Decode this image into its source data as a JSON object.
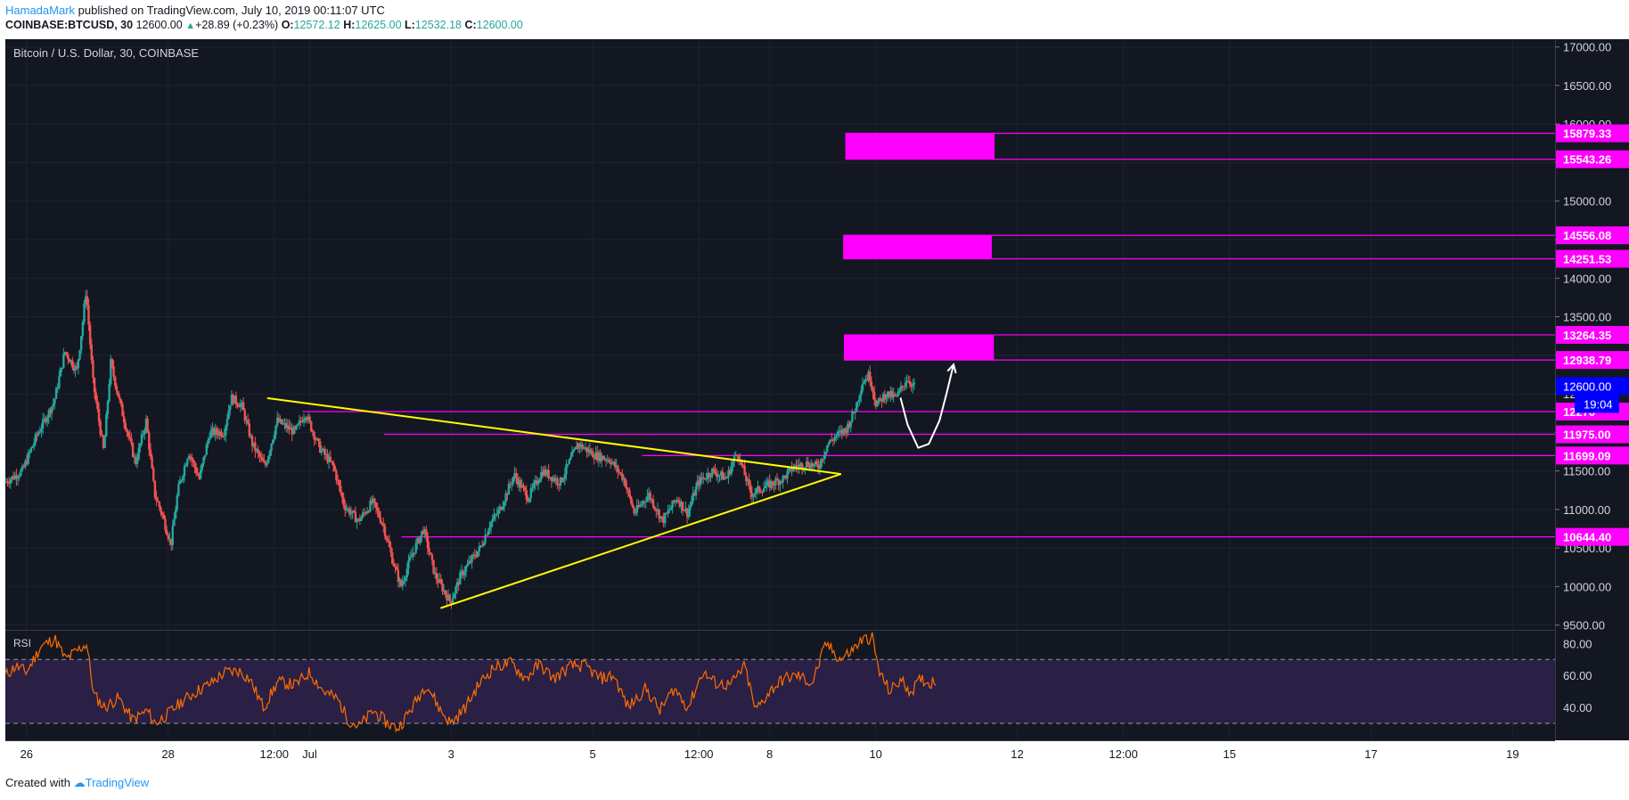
{
  "header": {
    "author": "HamadaMark",
    "published": "published on TradingView.com, July 10, 2019 00:11:07 UTC",
    "symbol": "COINBASE:BTCUSD, 30",
    "last": "12600.00",
    "change": "+28.89 (+0.23%)",
    "open_label": "O:",
    "open": "12572.12",
    "high_label": "H:",
    "high": "12625.00",
    "low_label": "L:",
    "low": "12532.18",
    "close_label": "C:",
    "close": "12600.00"
  },
  "footer": {
    "created_with": "Created with",
    "brand": "TradingView"
  },
  "colors": {
    "background": "#131722",
    "up": "#26a69a",
    "down": "#ef5350",
    "magenta": "#ff00ff",
    "yellow": "#ffff00",
    "rsi_line": "#ff6d00",
    "rsi_band": "#2a1f45",
    "last_price": "#0000ff"
  },
  "chart_data": {
    "type": "candlestick",
    "title": "Bitcoin / U.S. Dollar, 30, COINBASE",
    "ylim": [
      9450,
      17100
    ],
    "y_ticks": [
      "17000.00",
      "16500.00",
      "16000.00",
      "15500.00",
      "15000.00",
      "14500.00",
      "14000.00",
      "13500.00",
      "13000.00",
      "12500.00",
      "12000.00",
      "11500.00",
      "11000.00",
      "10500.00",
      "10000.00",
      "9500.00"
    ],
    "y_tick_values": [
      17000,
      16500,
      16000,
      15500,
      15000,
      14500,
      14000,
      13500,
      13000,
      12500,
      12000,
      11500,
      11000,
      10500,
      10000,
      9500
    ],
    "x_ticks": [
      "26",
      "28",
      "12:00",
      "Jul",
      "3",
      "5",
      "12:00",
      "8",
      "10",
      "12",
      "12:00",
      "15",
      "17",
      "19"
    ],
    "x_tick_days": [
      26,
      28,
      29.5,
      30,
      32,
      34,
      35.5,
      36.5,
      38,
      40,
      41.5,
      43,
      45,
      47
    ],
    "xlim_days": [
      25.7,
      47.6
    ],
    "price_path": [
      [
        25.7,
        11350
      ],
      [
        25.95,
        11500
      ],
      [
        26.15,
        11950
      ],
      [
        26.4,
        12400
      ],
      [
        26.55,
        13050
      ],
      [
        26.72,
        12800
      ],
      [
        26.8,
        13400
      ],
      [
        26.85,
        13850
      ],
      [
        26.95,
        12650
      ],
      [
        27.1,
        11750
      ],
      [
        27.2,
        12900
      ],
      [
        27.35,
        12300
      ],
      [
        27.55,
        11600
      ],
      [
        27.7,
        12150
      ],
      [
        27.82,
        11200
      ],
      [
        27.92,
        10950
      ],
      [
        28.05,
        10550
      ],
      [
        28.15,
        11250
      ],
      [
        28.3,
        11750
      ],
      [
        28.45,
        11400
      ],
      [
        28.6,
        12000
      ],
      [
        28.8,
        12000
      ],
      [
        28.9,
        12450
      ],
      [
        29.05,
        12350
      ],
      [
        29.2,
        11850
      ],
      [
        29.38,
        11550
      ],
      [
        29.55,
        12150
      ],
      [
        29.8,
        12000
      ],
      [
        29.95,
        12250
      ],
      [
        30.15,
        11800
      ],
      [
        30.35,
        11550
      ],
      [
        30.5,
        11050
      ],
      [
        30.7,
        10850
      ],
      [
        30.9,
        11100
      ],
      [
        31.05,
        10800
      ],
      [
        31.18,
        10350
      ],
      [
        31.3,
        10000
      ],
      [
        31.45,
        10400
      ],
      [
        31.62,
        10750
      ],
      [
        31.78,
        10150
      ],
      [
        32.0,
        9800
      ],
      [
        32.15,
        10150
      ],
      [
        32.3,
        10350
      ],
      [
        32.42,
        10500
      ],
      [
        32.55,
        10800
      ],
      [
        32.7,
        11000
      ],
      [
        32.9,
        11450
      ],
      [
        33.1,
        11150
      ],
      [
        33.3,
        11500
      ],
      [
        33.55,
        11350
      ],
      [
        33.8,
        11850
      ],
      [
        34.05,
        11700
      ],
      [
        34.25,
        11650
      ],
      [
        34.45,
        11400
      ],
      [
        34.6,
        10950
      ],
      [
        34.8,
        11200
      ],
      [
        35.0,
        10850
      ],
      [
        35.2,
        11150
      ],
      [
        35.35,
        10950
      ],
      [
        35.5,
        11350
      ],
      [
        35.7,
        11500
      ],
      [
        35.9,
        11400
      ],
      [
        36.05,
        11750
      ],
      [
        36.25,
        11200
      ],
      [
        36.45,
        11300
      ],
      [
        36.7,
        11400
      ],
      [
        36.85,
        11550
      ],
      [
        37.05,
        11600
      ],
      [
        37.2,
        11550
      ],
      [
        37.33,
        11850
      ],
      [
        37.45,
        11950
      ],
      [
        37.6,
        12050
      ],
      [
        37.72,
        12300
      ],
      [
        37.82,
        12650
      ],
      [
        37.92,
        12750
      ],
      [
        38.02,
        12350
      ],
      [
        38.15,
        12500
      ],
      [
        38.3,
        12450
      ],
      [
        38.45,
        12700
      ],
      [
        38.55,
        12600
      ]
    ],
    "level_lines": [
      {
        "value": 15879.33,
        "label": "15879.33",
        "start_day": 37.57
      },
      {
        "value": 15543.26,
        "label": "15543.26",
        "start_day": 37.57
      },
      {
        "value": 14556.08,
        "label": "14556.08",
        "start_day": 37.54
      },
      {
        "value": 14251.53,
        "label": "14251.53",
        "start_day": 37.54
      },
      {
        "value": 13264.35,
        "label": "13264.35",
        "start_day": 37.55
      },
      {
        "value": 12938.79,
        "label": "12938.79",
        "start_day": 37.55
      },
      {
        "value": 12270,
        "label": "12270",
        "start_day": 29.9
      },
      {
        "value": 11975.0,
        "label": "11975.00",
        "start_day": 31.05
      },
      {
        "value": 11699.09,
        "label": "11699.09",
        "start_day": 34.7
      },
      {
        "value": 10644.4,
        "label": "10644.40",
        "start_day": 31.3
      }
    ],
    "resistance_zones": [
      {
        "from_day": 37.57,
        "to_day": 39.68,
        "low": 15543.26,
        "high": 15879.33
      },
      {
        "from_day": 37.54,
        "to_day": 39.64,
        "low": 14251.53,
        "high": 14556.08
      },
      {
        "from_day": 37.55,
        "to_day": 39.67,
        "low": 12938.79,
        "high": 13264.35
      }
    ],
    "triangle": {
      "upper": [
        [
          29.4,
          12445
        ],
        [
          37.51,
          11460
        ]
      ],
      "lower": [
        [
          31.85,
          9720
        ],
        [
          37.51,
          11460
        ]
      ]
    },
    "projection": [
      [
        38.35,
        12450
      ],
      [
        38.45,
        12100
      ],
      [
        38.6,
        11800
      ],
      [
        38.75,
        11850
      ],
      [
        38.9,
        12150
      ],
      [
        39.0,
        12500
      ],
      [
        39.1,
        12880
      ]
    ],
    "last_price_label": "12600.00",
    "countdown_label": "19:04",
    "rsi": {
      "label": "RSI",
      "y_ticks": [
        "80.00",
        "60.00",
        "40.00"
      ],
      "y_tick_values": [
        80,
        60,
        40
      ],
      "band": [
        30,
        70
      ],
      "ylim": [
        20,
        88
      ],
      "values": [
        [
          25.7,
          60
        ],
        [
          25.85,
          66
        ],
        [
          26.0,
          62
        ],
        [
          26.2,
          78
        ],
        [
          26.4,
          83
        ],
        [
          26.55,
          70
        ],
        [
          26.7,
          75
        ],
        [
          26.85,
          80
        ],
        [
          26.95,
          48
        ],
        [
          27.1,
          40
        ],
        [
          27.3,
          46
        ],
        [
          27.5,
          32
        ],
        [
          27.7,
          38
        ],
        [
          27.82,
          30
        ],
        [
          28.0,
          36
        ],
        [
          28.2,
          44
        ],
        [
          28.4,
          50
        ],
        [
          28.6,
          55
        ],
        [
          28.8,
          62
        ],
        [
          29.0,
          63
        ],
        [
          29.15,
          58
        ],
        [
          29.35,
          40
        ],
        [
          29.55,
          56
        ],
        [
          29.8,
          54
        ],
        [
          30.0,
          62
        ],
        [
          30.2,
          50
        ],
        [
          30.4,
          45
        ],
        [
          30.55,
          32
        ],
        [
          30.7,
          28
        ],
        [
          30.9,
          38
        ],
        [
          31.1,
          30
        ],
        [
          31.25,
          27
        ],
        [
          31.45,
          40
        ],
        [
          31.65,
          55
        ],
        [
          31.85,
          38
        ],
        [
          32.0,
          30
        ],
        [
          32.2,
          40
        ],
        [
          32.4,
          55
        ],
        [
          32.6,
          65
        ],
        [
          32.85,
          68
        ],
        [
          33.05,
          58
        ],
        [
          33.25,
          67
        ],
        [
          33.45,
          58
        ],
        [
          33.7,
          66
        ],
        [
          33.9,
          66
        ],
        [
          34.1,
          58
        ],
        [
          34.3,
          60
        ],
        [
          34.5,
          40
        ],
        [
          34.75,
          52
        ],
        [
          34.95,
          38
        ],
        [
          35.15,
          52
        ],
        [
          35.35,
          40
        ],
        [
          35.55,
          62
        ],
        [
          35.75,
          55
        ],
        [
          35.95,
          54
        ],
        [
          36.15,
          66
        ],
        [
          36.3,
          38
        ],
        [
          36.5,
          50
        ],
        [
          36.7,
          58
        ],
        [
          36.9,
          60
        ],
        [
          37.1,
          55
        ],
        [
          37.3,
          80
        ],
        [
          37.5,
          70
        ],
        [
          37.65,
          75
        ],
        [
          37.8,
          82
        ],
        [
          37.95,
          84
        ],
        [
          38.05,
          62
        ],
        [
          38.2,
          50
        ],
        [
          38.35,
          57
        ],
        [
          38.5,
          50
        ],
        [
          38.65,
          58
        ],
        [
          38.75,
          55
        ],
        [
          38.85,
          57
        ]
      ]
    }
  }
}
